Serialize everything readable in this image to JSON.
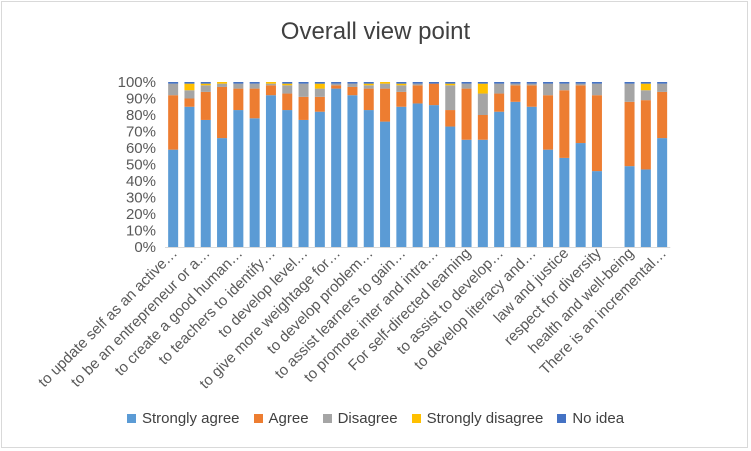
{
  "chart_data": {
    "type": "bar",
    "stacked": true,
    "title": "Overall view point",
    "yticks": [
      "0%",
      "10%",
      "20%",
      "30%",
      "40%",
      "50%",
      "60%",
      "70%",
      "80%",
      "90%",
      "100%"
    ],
    "ylim": [
      0,
      100
    ],
    "grid": false,
    "legend_position": "bottom",
    "tick_labels": [
      "to update self as an active…",
      "to be an entrepreneur or a…",
      "to create a good human…",
      "to teachers to identify…",
      "to develop level…",
      "to give more weightage for…",
      "to develop problem…",
      "to assist learners to gain…",
      "to promote inter and intra…",
      "For self-directed learning",
      "to assist to develop…",
      "to develop literacy and…",
      "law and justice",
      "respect for diversity",
      "health and well-being",
      "There is an incremental…"
    ],
    "series": [
      {
        "name": "Strongly agree",
        "color": "#5b9bd5",
        "values": [
          59,
          85,
          77,
          66,
          83,
          78,
          92,
          83,
          77,
          82,
          96,
          92,
          83,
          76,
          85,
          87,
          86,
          73,
          65,
          65,
          82,
          88,
          85,
          59,
          54,
          63,
          46,
          null,
          49,
          47,
          66
        ]
      },
      {
        "name": "Agree",
        "color": "#ed7d31",
        "values": [
          33,
          5,
          17,
          31,
          13,
          18,
          6,
          10,
          14,
          9,
          2,
          5,
          13,
          20,
          9,
          11,
          13,
          10,
          31,
          15,
          11,
          10,
          13,
          33,
          41,
          35,
          46,
          null,
          39,
          42,
          28
        ]
      },
      {
        "name": "Disagree",
        "color": "#a5a5a5",
        "values": [
          7,
          5,
          4,
          2,
          3,
          3,
          1,
          5,
          8,
          5,
          1,
          2,
          2,
          3,
          4,
          1,
          0,
          15,
          3,
          13,
          6,
          1,
          1,
          7,
          4,
          1,
          7,
          null,
          11,
          6,
          5
        ]
      },
      {
        "name": "Strongly disagree",
        "color": "#ffc000",
        "values": [
          0,
          4,
          1,
          1,
          0,
          0,
          1,
          1,
          0,
          3,
          0,
          0,
          1,
          1,
          1,
          0,
          0,
          1,
          0,
          6,
          0,
          0,
          0,
          0,
          0,
          0,
          0,
          null,
          0,
          4,
          0
        ]
      },
      {
        "name": "No idea",
        "color": "#4472c4",
        "values": [
          1,
          1,
          1,
          0,
          1,
          1,
          0,
          1,
          1,
          1,
          1,
          1,
          1,
          0,
          1,
          1,
          1,
          1,
          1,
          1,
          1,
          1,
          1,
          1,
          1,
          1,
          1,
          null,
          1,
          1,
          1
        ]
      }
    ]
  }
}
